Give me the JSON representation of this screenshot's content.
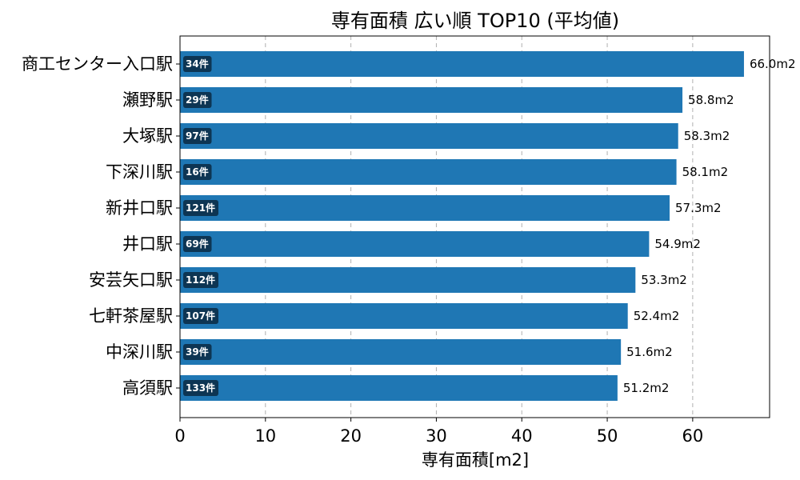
{
  "chart_data": {
    "type": "bar",
    "orientation": "horizontal",
    "title": "専有面積 広い順 TOP10 (平均値)",
    "xlabel": "専有面積[m2]",
    "ylabel": "",
    "xlim": [
      0,
      69
    ],
    "xticks": [
      0,
      10,
      20,
      30,
      40,
      50,
      60
    ],
    "grid": "x-dashed",
    "bar_color": "#1f77b4",
    "badge_color": "#0d3553",
    "categories": [
      "商工センター入口駅",
      "瀬野駅",
      "大塚駅",
      "下深川駅",
      "新井口駅",
      "井口駅",
      "安芸矢口駅",
      "七軒茶屋駅",
      "中深川駅",
      "高須駅"
    ],
    "values": [
      66.0,
      58.8,
      58.3,
      58.1,
      57.3,
      54.9,
      53.3,
      52.4,
      51.6,
      51.2
    ],
    "value_labels": [
      "66.0m2",
      "58.8m2",
      "58.3m2",
      "58.1m2",
      "57.3m2",
      "54.9m2",
      "53.3m2",
      "52.4m2",
      "51.6m2",
      "51.2m2"
    ],
    "counts": [
      "34件",
      "29件",
      "97件",
      "16件",
      "121件",
      "69件",
      "112件",
      "107件",
      "39件",
      "133件"
    ]
  }
}
